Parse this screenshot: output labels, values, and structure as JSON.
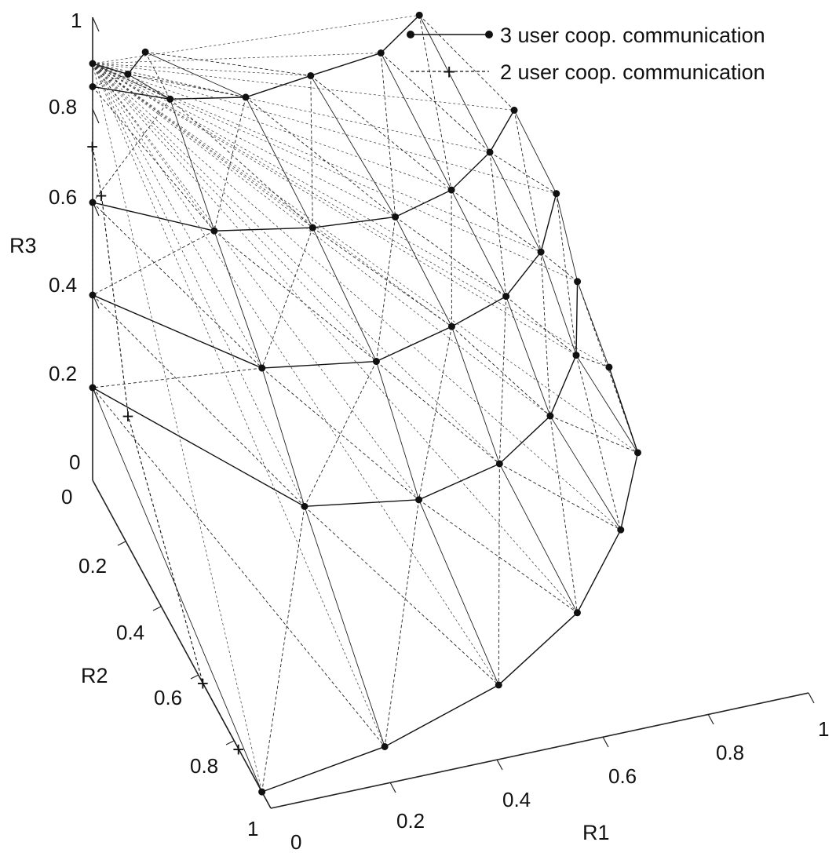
{
  "chart_data": {
    "type": "scatter",
    "subtype": "3d-mesh-surface",
    "title": "",
    "axes": {
      "x": {
        "label": "R1",
        "range": [
          0,
          1
        ],
        "ticks": [
          "0",
          "0.2",
          "0.4",
          "0.6",
          "0.8",
          "1"
        ]
      },
      "y": {
        "label": "R2",
        "range": [
          0,
          1
        ],
        "ticks": [
          "0",
          "0.2",
          "0.4",
          "0.6",
          "0.8",
          "1"
        ]
      },
      "z": {
        "label": "R3",
        "range": [
          0,
          1
        ],
        "ticks": [
          "0",
          "0.2",
          "0.4",
          "0.6",
          "0.8",
          "1"
        ]
      }
    },
    "grid": false,
    "legend_position": "top-right",
    "series": [
      {
        "name": "3 user coop. communication",
        "style": "solid line, filled circle markers",
        "color": "#111111",
        "mesh_rows": [
          {
            "z": 0.9,
            "x": [
              0.0,
              0.05,
              0.1
            ],
            "y": [
              0.0,
              0.05,
              0.0
            ]
          },
          {
            "z": 0.85,
            "x": [
              0.0,
              0.12,
              0.25,
              0.38,
              0.52,
              0.62
            ],
            "y": [
              0.0,
              0.08,
              0.12,
              0.1,
              0.08,
              0.0
            ]
          },
          {
            "z": 0.6,
            "x": [
              0.0,
              0.18,
              0.35,
              0.5,
              0.62,
              0.72,
              0.8
            ],
            "y": [
              0.0,
              0.15,
              0.2,
              0.22,
              0.18,
              0.1,
              0.0
            ]
          },
          {
            "z": 0.4,
            "x": [
              0.0,
              0.22,
              0.42,
              0.58,
              0.7,
              0.8,
              0.88
            ],
            "y": [
              0.0,
              0.3,
              0.35,
              0.3,
              0.25,
              0.15,
              0.0
            ]
          },
          {
            "z": 0.2,
            "x": [
              0.0,
              0.25,
              0.45,
              0.62,
              0.75,
              0.85,
              0.92
            ],
            "y": [
              0.0,
              0.45,
              0.5,
              0.45,
              0.35,
              0.2,
              0.0
            ]
          },
          {
            "z": 0.0,
            "x": [
              0.0,
              0.25,
              0.5,
              0.7,
              0.85,
              0.95,
              0.98
            ],
            "y": [
              0.95,
              0.9,
              0.8,
              0.65,
              0.45,
              0.25,
              0.0
            ]
          }
        ]
      },
      {
        "name": "2 user coop. communication",
        "style": "dashed line, plus markers",
        "color": "#111111",
        "points": [
          {
            "x": 0.0,
            "y": 0.0,
            "z": 0.72
          },
          {
            "x": 0.0,
            "y": 0.05,
            "z": 0.65
          },
          {
            "x": 0.0,
            "y": 0.2,
            "z": 0.28
          },
          {
            "x": 0.0,
            "y": 0.62,
            "z": 0.0
          },
          {
            "x": 0.0,
            "y": 0.82,
            "z": 0.0
          }
        ]
      }
    ]
  }
}
